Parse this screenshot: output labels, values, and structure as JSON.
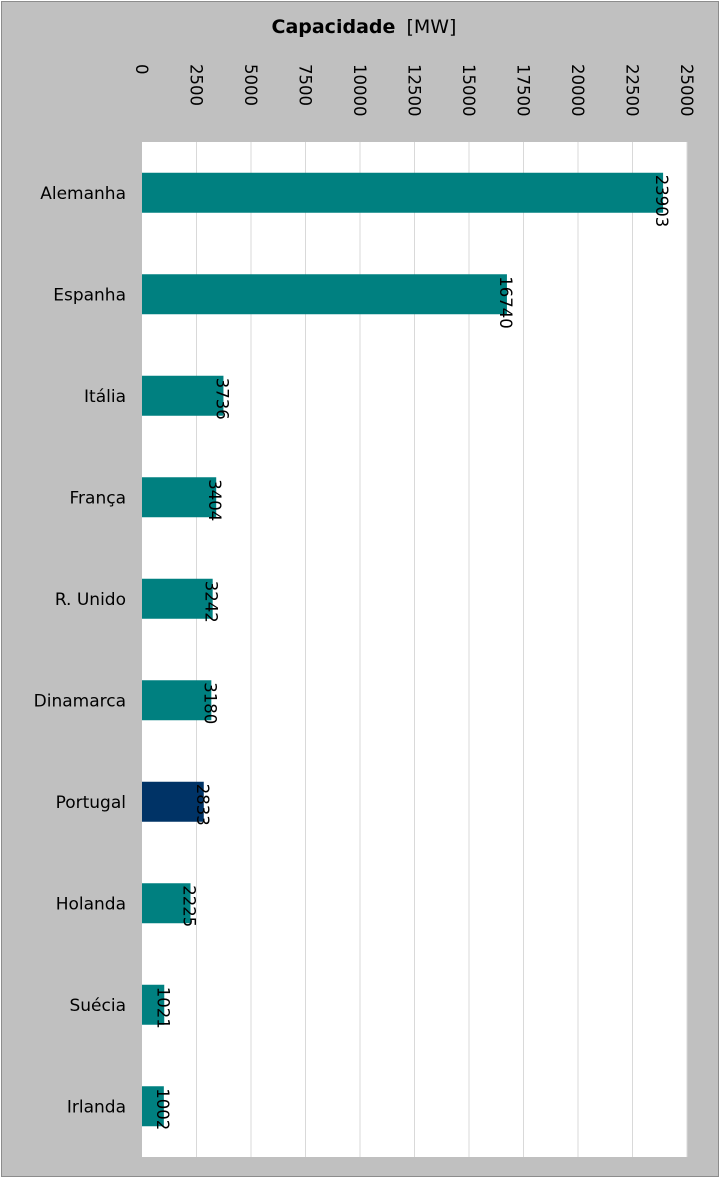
{
  "chart_data": {
    "type": "bar",
    "orientation": "horizontal",
    "title": "Capacidade",
    "title_unit": "[MW]",
    "categories": [
      "Alemanha",
      "Espanha",
      "Itália",
      "França",
      "R. Unido",
      "Dinamarca",
      "Portugal",
      "Holanda",
      "Suécia",
      "Irlanda"
    ],
    "values": [
      23903,
      16740,
      3736,
      3404,
      3242,
      3180,
      2833,
      2225,
      1021,
      1002
    ],
    "xlim": [
      0,
      25000
    ],
    "ticks": [
      "0",
      "2500",
      "5000",
      "7500",
      "10000",
      "12500",
      "15000",
      "17500",
      "20000",
      "22500",
      "25000"
    ],
    "grid": true,
    "legend": "none",
    "bar_color": "#008080",
    "highlight_category": "Portugal",
    "highlight_color": "#003366"
  }
}
